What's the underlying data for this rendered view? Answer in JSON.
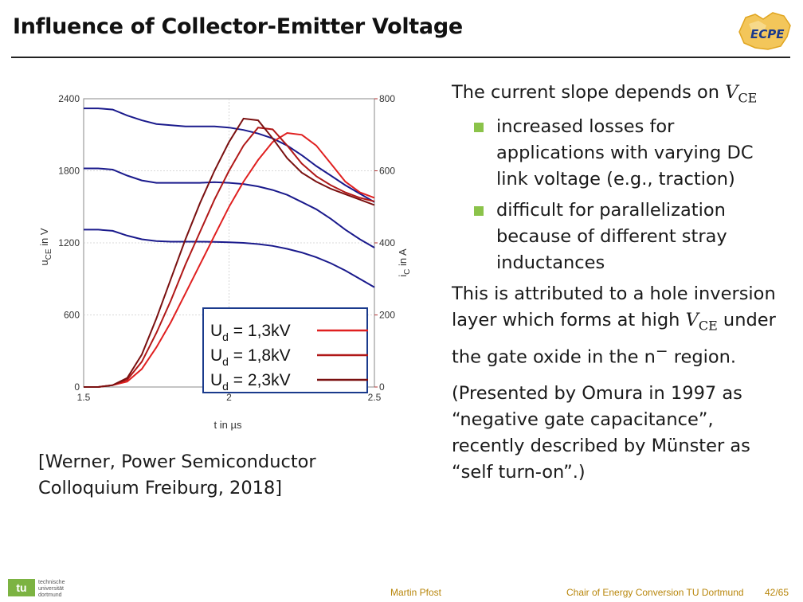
{
  "header": {
    "title": "Influence of Collector-Emitter Voltage",
    "logo_text": "ECPE"
  },
  "text": {
    "intro_prefix": "The current slope depends on ",
    "vce_symbol": "V",
    "vce_sub": "CE",
    "bullets": [
      "increased losses for applications with varying DC link voltage (e.g., traction)",
      "difficult for parallelization because of different stray inductances"
    ],
    "para2_a": "This is attributed to a hole inversion layer which forms at high ",
    "para2_b": " under the gate oxide in the n",
    "para2_sup": "−",
    "para2_c": " region.",
    "para3": "(Presented by Omura in 1997 as “negative gate capacitance”, recently described by Münster as “self turn-on”.)"
  },
  "citation": {
    "line1": "[Werner, Power Semiconductor",
    "line2": "Colloquium Freiburg, 2018]"
  },
  "footer": {
    "author": "Martin Pfost",
    "institution": "Chair of Energy Conversion TU Dortmund",
    "page": "42/65",
    "uni_logo": "tu",
    "uni_name": "technische universität dortmund"
  },
  "colors": {
    "voltage": "#1a1a8c",
    "current": [
      "#e02020",
      "#b01818",
      "#7a1010"
    ],
    "legend_border": "#1a3a8c",
    "bullet": "#8bc34a"
  },
  "chart_data": {
    "type": "line",
    "xlabel": "t in µs",
    "ylabel_left": "u",
    "ylabel_left_sub": "CE",
    "ylabel_left_unit": " in V",
    "ylabel_right": "i",
    "ylabel_right_sub": "C",
    "ylabel_right_unit": " in A",
    "xlim": [
      1.5,
      2.5
    ],
    "ylim_left": [
      0,
      2400
    ],
    "ylim_right": [
      0,
      800
    ],
    "xticks": [
      "1.5",
      "2",
      "2.5"
    ],
    "yticks_left": [
      "0",
      "600",
      "1200",
      "1800",
      "2400"
    ],
    "yticks_right": [
      "0",
      "200",
      "400",
      "600",
      "800"
    ],
    "legend": [
      {
        "label": "U",
        "sub": "d",
        "value": " = 1,3kV"
      },
      {
        "label": "U",
        "sub": "d",
        "value": " = 1,8kV"
      },
      {
        "label": "U",
        "sub": "d",
        "value": " = 2,3kV"
      }
    ],
    "voltage_series": [
      {
        "name": "1,3kV",
        "x": [
          1.5,
          1.55,
          1.6,
          1.65,
          1.7,
          1.75,
          1.8,
          1.85,
          1.9,
          1.95,
          2.0,
          2.05,
          2.1,
          2.15,
          2.2,
          2.25,
          2.3,
          2.35,
          2.4,
          2.45,
          2.5
        ],
        "y": [
          1310,
          1310,
          1300,
          1260,
          1230,
          1215,
          1210,
          1210,
          1210,
          1208,
          1205,
          1200,
          1190,
          1175,
          1150,
          1120,
          1080,
          1030,
          970,
          900,
          830
        ]
      },
      {
        "name": "1,8kV",
        "x": [
          1.5,
          1.55,
          1.6,
          1.65,
          1.7,
          1.75,
          1.8,
          1.85,
          1.9,
          1.95,
          2.0,
          2.05,
          2.1,
          2.15,
          2.2,
          2.25,
          2.3,
          2.35,
          2.4,
          2.45,
          2.5
        ],
        "y": [
          1820,
          1820,
          1810,
          1760,
          1720,
          1700,
          1700,
          1700,
          1700,
          1705,
          1700,
          1690,
          1670,
          1640,
          1600,
          1540,
          1480,
          1400,
          1310,
          1230,
          1160
        ]
      },
      {
        "name": "2,3kV",
        "x": [
          1.5,
          1.55,
          1.6,
          1.65,
          1.7,
          1.75,
          1.8,
          1.85,
          1.9,
          1.95,
          2.0,
          2.05,
          2.1,
          2.15,
          2.2,
          2.25,
          2.3,
          2.35,
          2.4,
          2.45,
          2.5
        ],
        "y": [
          2320,
          2320,
          2310,
          2260,
          2220,
          2190,
          2180,
          2170,
          2170,
          2170,
          2160,
          2140,
          2110,
          2070,
          2010,
          1930,
          1840,
          1760,
          1680,
          1610,
          1540
        ]
      }
    ],
    "current_series": [
      {
        "name": "1,3kV",
        "x": [
          1.5,
          1.55,
          1.6,
          1.65,
          1.7,
          1.75,
          1.8,
          1.85,
          1.9,
          1.95,
          2.0,
          2.05,
          2.1,
          2.15,
          2.2,
          2.25,
          2.3,
          2.35,
          2.4,
          2.45,
          2.5
        ],
        "y": [
          0,
          0,
          5,
          15,
          50,
          110,
          180,
          260,
          340,
          420,
          500,
          570,
          630,
          680,
          705,
          700,
          670,
          620,
          570,
          540,
          525
        ]
      },
      {
        "name": "1,8kV",
        "x": [
          1.5,
          1.55,
          1.6,
          1.65,
          1.7,
          1.75,
          1.8,
          1.85,
          1.9,
          1.95,
          2.0,
          2.05,
          2.1,
          2.15,
          2.2,
          2.25,
          2.3,
          2.35,
          2.4,
          2.45,
          2.5
        ],
        "y": [
          0,
          0,
          5,
          20,
          70,
          150,
          240,
          340,
          430,
          520,
          600,
          670,
          720,
          715,
          670,
          620,
          585,
          560,
          540,
          525,
          515
        ]
      },
      {
        "name": "2,3kV",
        "x": [
          1.5,
          1.55,
          1.6,
          1.65,
          1.7,
          1.75,
          1.8,
          1.85,
          1.9,
          1.95,
          2.0,
          2.05,
          2.1,
          2.15,
          2.2,
          2.25,
          2.3,
          2.35,
          2.4,
          2.45,
          2.5
        ],
        "y": [
          0,
          0,
          5,
          25,
          90,
          190,
          300,
          410,
          510,
          600,
          680,
          745,
          740,
          690,
          635,
          595,
          570,
          550,
          535,
          520,
          505
        ]
      }
    ]
  }
}
